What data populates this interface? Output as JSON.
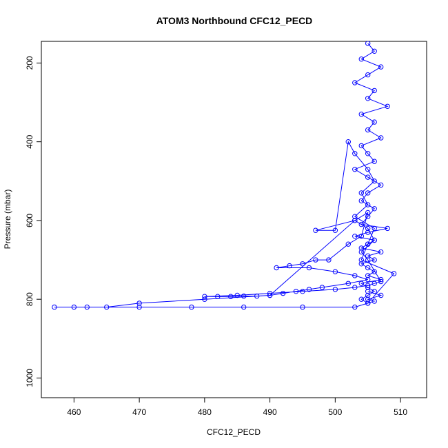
{
  "chart_data": {
    "type": "scatter",
    "title": "ATOM3 Northbound CFC12_PECD",
    "xlabel": "CFC12_PECD",
    "ylabel": "Pressure (mbar)",
    "xlim": [
      455,
      514
    ],
    "ylim": [
      1050,
      145
    ],
    "y_reversed": true,
    "x_ticks": [
      460,
      470,
      480,
      490,
      500,
      510
    ],
    "y_ticks": [
      200,
      400,
      600,
      800,
      1000
    ],
    "grid": false,
    "legend": "none",
    "series_color": "#0000ff",
    "marker": "open-circle",
    "connect_points": true,
    "series": [
      {
        "description_points": "approximate trace digitised from figure",
        "x": [
          505,
          506,
          504,
          507,
          505,
          503,
          506,
          505,
          508,
          504,
          506,
          505,
          507,
          504,
          505,
          506,
          503,
          505,
          507,
          505,
          504,
          506,
          505,
          504,
          508,
          505,
          503,
          506,
          505,
          504,
          507,
          505,
          506,
          504,
          505,
          506,
          505,
          507,
          504,
          505,
          506,
          505,
          504,
          505,
          509,
          504,
          505,
          506,
          503,
          505,
          504,
          506,
          505,
          503,
          502,
          500,
          497,
          503,
          505,
          504,
          502,
          499,
          497,
          495,
          493,
          491,
          496,
          500,
          503,
          505,
          502,
          498,
          496,
          494,
          492,
          490,
          488,
          486,
          484,
          482,
          480,
          485,
          490,
          495,
          500,
          503,
          505,
          506,
          507,
          505,
          504,
          506,
          505,
          503,
          490,
          480,
          470,
          465,
          460,
          457,
          462,
          470,
          478,
          486,
          495,
          503,
          505,
          506,
          505,
          507,
          505
        ],
        "y": [
          150,
          170,
          190,
          210,
          230,
          250,
          270,
          290,
          310,
          330,
          350,
          370,
          390,
          410,
          430,
          450,
          470,
          490,
          510,
          530,
          550,
          570,
          590,
          610,
          620,
          630,
          640,
          650,
          660,
          670,
          680,
          690,
          700,
          710,
          720,
          730,
          740,
          750,
          760,
          770,
          780,
          790,
          800,
          810,
          735,
          700,
          660,
          620,
          590,
          560,
          530,
          500,
          470,
          430,
          400,
          625,
          625,
          600,
          580,
          640,
          660,
          700,
          700,
          710,
          715,
          720,
          720,
          730,
          740,
          750,
          760,
          770,
          775,
          780,
          785,
          790,
          792,
          792,
          793,
          793,
          793,
          790,
          785,
          780,
          775,
          770,
          765,
          760,
          755,
          700,
          680,
          650,
          620,
          600,
          790,
          800,
          810,
          820,
          820,
          820,
          820,
          820,
          820,
          820,
          820,
          820,
          810,
          805,
          800,
          790,
          780
        ]
      }
    ]
  }
}
